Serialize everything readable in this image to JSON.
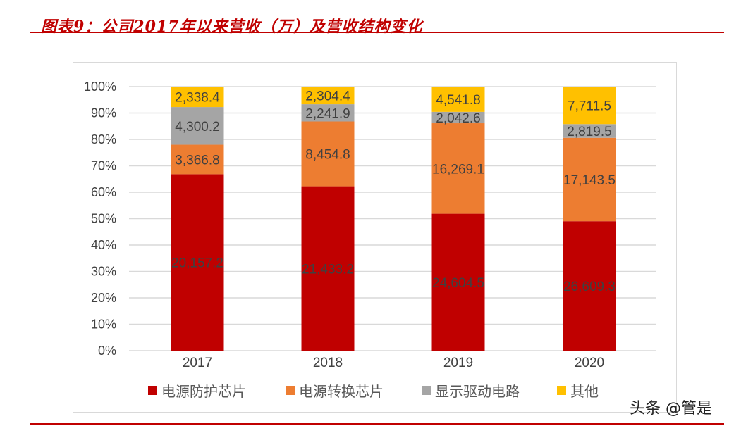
{
  "title": "图表9：公司2017年以来营收（万）及营收结构变化",
  "watermark": "头条 @管是",
  "chart_data": {
    "type": "bar",
    "stacked": "percent",
    "categories": [
      "2017",
      "2018",
      "2019",
      "2020"
    ],
    "series": [
      {
        "name": "电源防护芯片",
        "color": "#c00000",
        "values": [
          20157.2,
          21433.2,
          24604.5,
          26609.3
        ],
        "labels": [
          "20,157.2",
          "21,433.2",
          "24,604.5",
          "26,609.3"
        ]
      },
      {
        "name": "电源转换芯片",
        "color": "#ed7d31",
        "values": [
          3366.8,
          8454.8,
          16269.1,
          17143.5
        ],
        "labels": [
          "3,366.8",
          "8,454.8",
          "16,269.1",
          "17,143.5"
        ]
      },
      {
        "name": "显示驱动电路",
        "color": "#a5a5a5",
        "values": [
          4300.2,
          2241.9,
          2042.6,
          2819.5
        ],
        "labels": [
          "4,300.2",
          "2,241.9",
          "2,042.6",
          "2,819.5"
        ]
      },
      {
        "name": "其他",
        "color": "#ffc000",
        "values": [
          2338.4,
          2304.4,
          4541.8,
          7711.5
        ],
        "labels": [
          "2,338.4",
          "2,304.4",
          "4,541.8",
          "7,711.5"
        ]
      }
    ],
    "ylim": [
      0,
      100
    ],
    "yticks": [
      "0%",
      "10%",
      "20%",
      "30%",
      "40%",
      "50%",
      "60%",
      "70%",
      "80%",
      "90%",
      "100%"
    ],
    "grid": true,
    "legend": "bottom"
  }
}
